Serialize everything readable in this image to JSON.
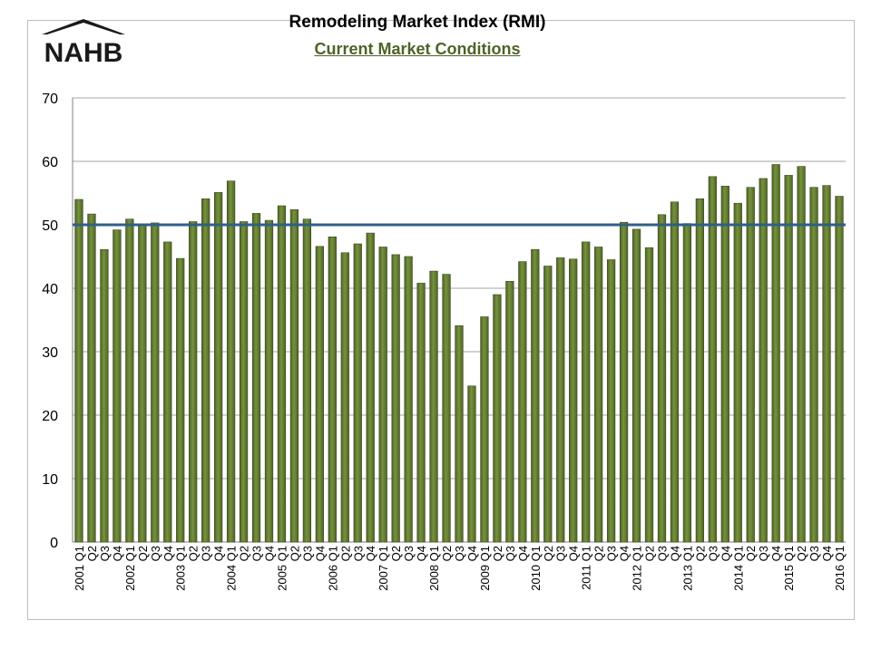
{
  "brand": {
    "name": "NAHB"
  },
  "header": {
    "title": "Remodeling Market Index (RMI)",
    "subtitle": "Current Market Conditions"
  },
  "colors": {
    "bar": "#4f6228",
    "bar_light": "#77933c",
    "reference_line": "#2e5f8a",
    "grid": "#a6a6a6",
    "subtitle": "#4f6228"
  },
  "chart_data": {
    "type": "bar",
    "title": "Remodeling Market Index (RMI)",
    "subtitle": "Current Market Conditions",
    "ylim": [
      0,
      70
    ],
    "yticks": [
      0,
      10,
      20,
      30,
      40,
      50,
      60,
      70
    ],
    "reference_line": 50,
    "grid": true,
    "categories": [
      "2001 Q1",
      "Q2",
      "Q3",
      "Q4",
      "2002 Q1",
      "Q2",
      "Q3",
      "Q4",
      "2003 Q1",
      "Q2",
      "Q3",
      "Q4",
      "2004 Q1",
      "Q2",
      "Q3",
      "Q4",
      "2005 Q1",
      "Q2",
      "Q3",
      "Q4",
      "2006 Q1",
      "Q2",
      "Q3",
      "Q4",
      "2007 Q1",
      "Q2",
      "Q3",
      "Q4",
      "2008 Q1",
      "Q2",
      "Q3",
      "Q4",
      "2009 Q1",
      "Q2",
      "Q3",
      "Q4",
      "2010 Q1",
      "Q2",
      "Q3",
      "Q4",
      "2011 Q1",
      "Q2",
      "Q3",
      "Q4",
      "2012 Q1",
      "Q2",
      "Q3",
      "Q4",
      "2013 Q1",
      "Q2",
      "Q3",
      "Q4",
      "2014 Q1",
      "Q2",
      "Q3",
      "Q4",
      "2015 Q1",
      "Q2",
      "Q3",
      "Q4",
      "2016 Q1"
    ],
    "values": [
      54,
      51.7,
      46.1,
      49.2,
      50.9,
      49.9,
      50.3,
      47.3,
      44.7,
      50.5,
      54.1,
      55.1,
      56.9,
      50.5,
      51.8,
      50.7,
      53,
      52.4,
      50.9,
      46.6,
      48.1,
      45.6,
      47,
      48.7,
      46.5,
      45.3,
      45,
      40.8,
      42.7,
      42.2,
      34.1,
      24.6,
      35.5,
      39,
      41.1,
      44.2,
      46.1,
      43.5,
      44.8,
      44.6,
      47.3,
      46.5,
      44.5,
      50.4,
      49.3,
      46.4,
      51.6,
      53.6,
      50.2,
      54.1,
      57.6,
      56.1,
      53.4,
      55.9,
      57.3,
      59.5,
      57.8,
      59.2,
      55.9,
      56.2,
      54.5
    ]
  }
}
